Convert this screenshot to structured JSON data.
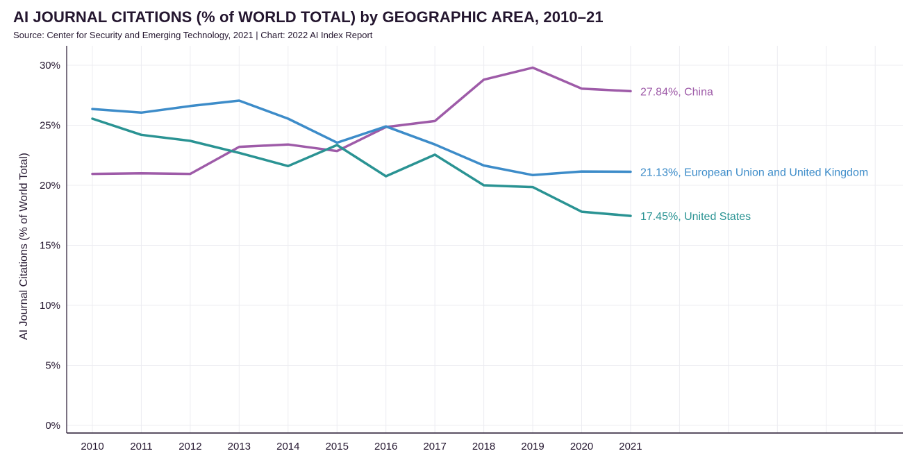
{
  "header": {
    "title": "AI JOURNAL CITATIONS (% of WORLD TOTAL) by GEOGRAPHIC AREA, 2010–21",
    "subtitle": "Source: Center for Security and Emerging Technology, 2021 | Chart: 2022 AI Index Report"
  },
  "chart_data": {
    "type": "line",
    "title": "AI JOURNAL CITATIONS (% of WORLD TOTAL) by GEOGRAPHIC AREA, 2010–21",
    "ylabel": "AI Journal Citations (% of World Total)",
    "xlabel": "",
    "x": [
      2010,
      2011,
      2012,
      2013,
      2014,
      2015,
      2016,
      2017,
      2018,
      2019,
      2020,
      2021
    ],
    "x_tick_labels": [
      "2010",
      "2011",
      "2012",
      "2013",
      "2014",
      "2015",
      "2016",
      "2017",
      "2018",
      "2019",
      "2020",
      "2021"
    ],
    "x_range": [
      2009.5,
      2026.5
    ],
    "ylim": [
      0,
      30.5
    ],
    "y_ticks": [
      0,
      5,
      10,
      15,
      20,
      25,
      30
    ],
    "y_tick_labels": [
      "0%",
      "5%",
      "10%",
      "15%",
      "20%",
      "25%",
      "30%"
    ],
    "grid": true,
    "series": [
      {
        "name": "China",
        "color": "#9e5ba8",
        "end_label": "27.84%, China",
        "values": [
          20.95,
          21.0,
          20.95,
          23.2,
          23.4,
          22.85,
          24.85,
          25.35,
          28.8,
          29.8,
          28.05,
          27.84
        ]
      },
      {
        "name": "European Union and United Kingdom",
        "color": "#3d8cc9",
        "end_label": "21.13%, European Union and United Kingdom",
        "values": [
          26.35,
          26.05,
          26.6,
          27.05,
          25.55,
          23.55,
          24.9,
          23.4,
          21.65,
          20.85,
          21.15,
          21.13
        ]
      },
      {
        "name": "United States",
        "color": "#2a9393",
        "end_label": "17.45%, United States",
        "values": [
          25.55,
          24.2,
          23.7,
          22.7,
          21.6,
          23.35,
          20.75,
          22.55,
          20.0,
          19.85,
          17.8,
          17.45
        ]
      }
    ]
  }
}
